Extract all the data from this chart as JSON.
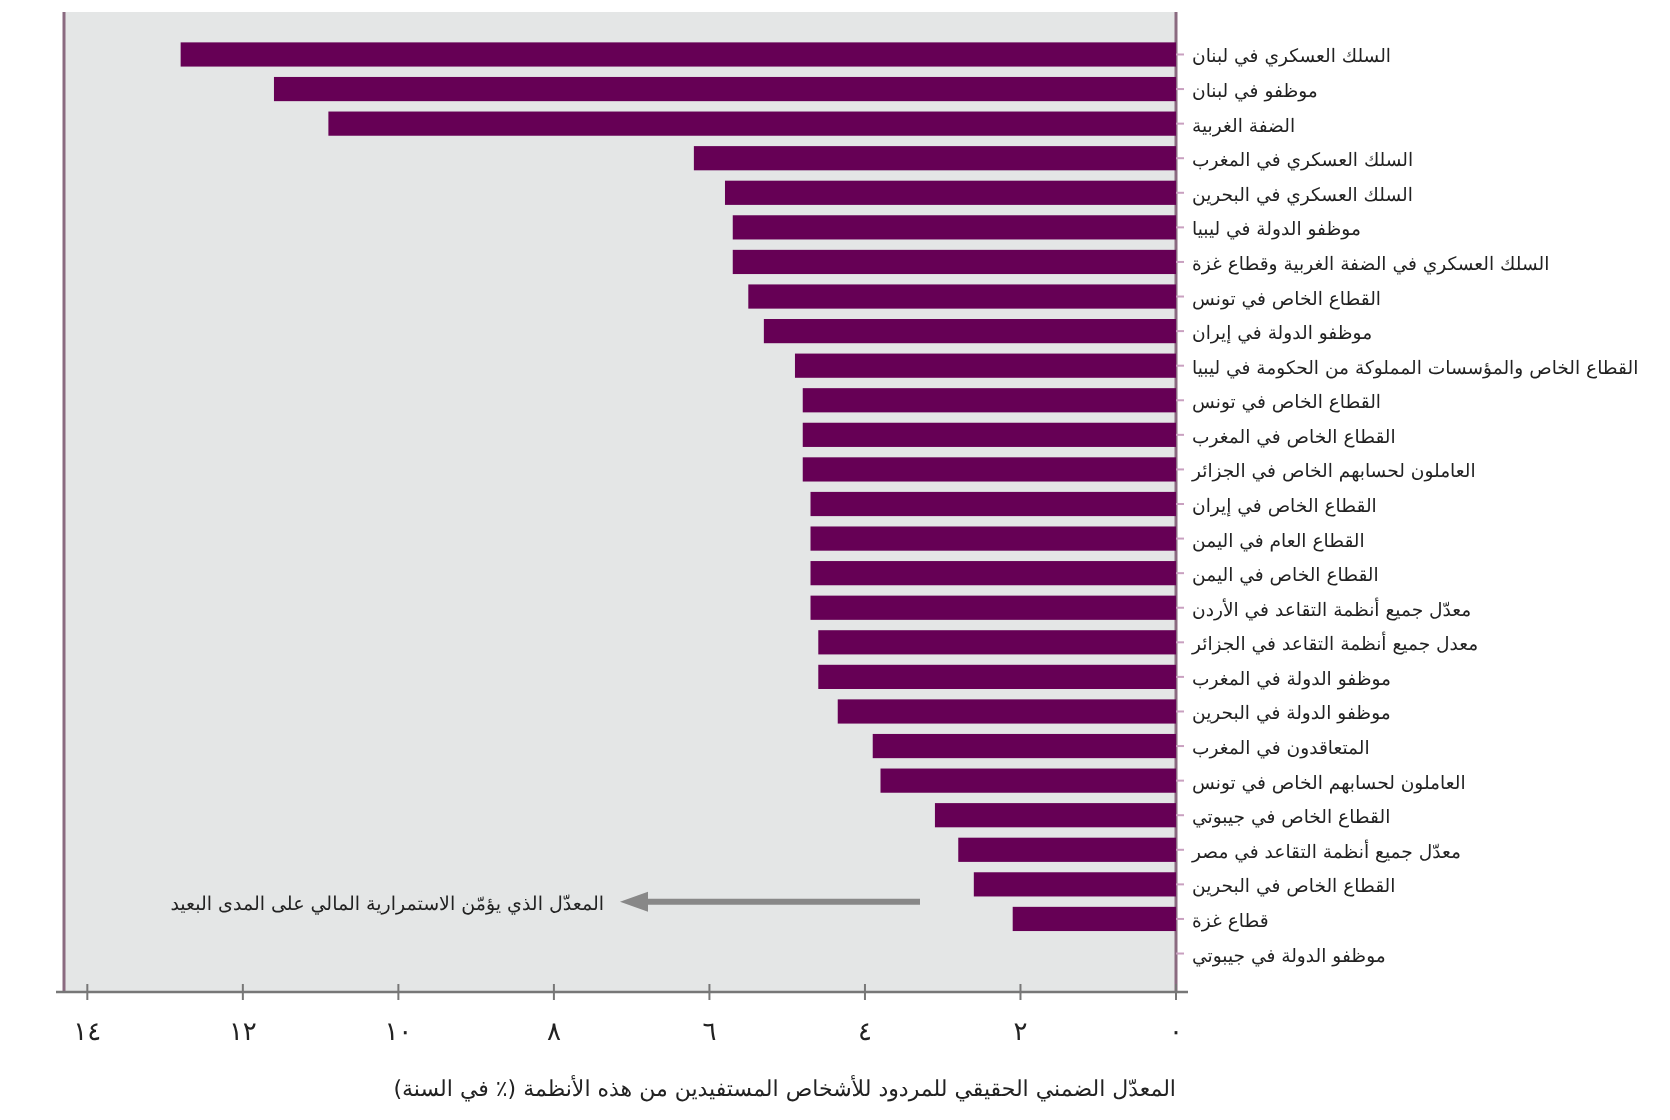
{
  "chart_data": {
    "type": "bar",
    "orientation": "horizontal",
    "categories": [
      "السلك العسكري في لبنان",
      "موظفو في لبنان",
      "الضفة الغربية",
      "السلك العسكري في المغرب",
      "السلك العسكري في البحرين",
      "موظفو الدولة في ليبيا",
      "السلك العسكري في الضفة الغربية وقطاع غزة",
      "القطاع الخاص في تونس",
      "موظفو الدولة في إيران",
      "القطاع الخاص والمؤسسات المملوكة من الحكومة في ليبيا",
      "القطاع الخاص في تونس",
      "القطاع الخاص في المغرب",
      "العاملون لحسابهم الخاص في الجزائر",
      "القطاع الخاص في إيران",
      "القطاع العام في اليمن",
      "القطاع الخاص في اليمن",
      "معدّل جميع أنظمة التقاعد في الأردن",
      "معدل جميع أنظمة التقاعد في الجزائر",
      "موظفو الدولة في المغرب",
      "موظفو الدولة في البحرين",
      "المتعاقدون في المغرب",
      "العاملون لحسابهم الخاص في تونس",
      "القطاع الخاص في جيبوتي",
      "معدّل جميع أنظمة التقاعد في مصر",
      "القطاع الخاص في البحرين",
      "قطاع غزة",
      "موظفو الدولة في جيبوتي"
    ],
    "values": [
      12.8,
      11.6,
      10.9,
      6.2,
      5.8,
      5.7,
      5.7,
      5.5,
      5.3,
      4.9,
      4.8,
      4.8,
      4.8,
      4.7,
      4.7,
      4.7,
      4.7,
      4.6,
      4.6,
      4.35,
      3.9,
      3.8,
      3.1,
      2.8,
      2.6,
      2.1,
      null
    ],
    "color": "#660055",
    "xlim": [
      14.3,
      0
    ],
    "xticks": [
      {
        "value": 0,
        "label": "٠"
      },
      {
        "value": 2,
        "label": "٢"
      },
      {
        "value": 4,
        "label": "٤"
      },
      {
        "value": 6,
        "label": "٦"
      },
      {
        "value": 8,
        "label": "٨"
      },
      {
        "value": 10,
        "label": "١٠"
      },
      {
        "value": 12,
        "label": "١٢"
      },
      {
        "value": 14,
        "label": "١٤"
      }
    ],
    "xlabel": "المعدّل الضمني الحقيقي للمردود للأشخاص المستفيدين من هذه الأنظمة (٪ في السنة)",
    "annotations": [
      "المعدّل الذي يؤمّن الاستمرارية المالي على المدى البعيد"
    ]
  }
}
